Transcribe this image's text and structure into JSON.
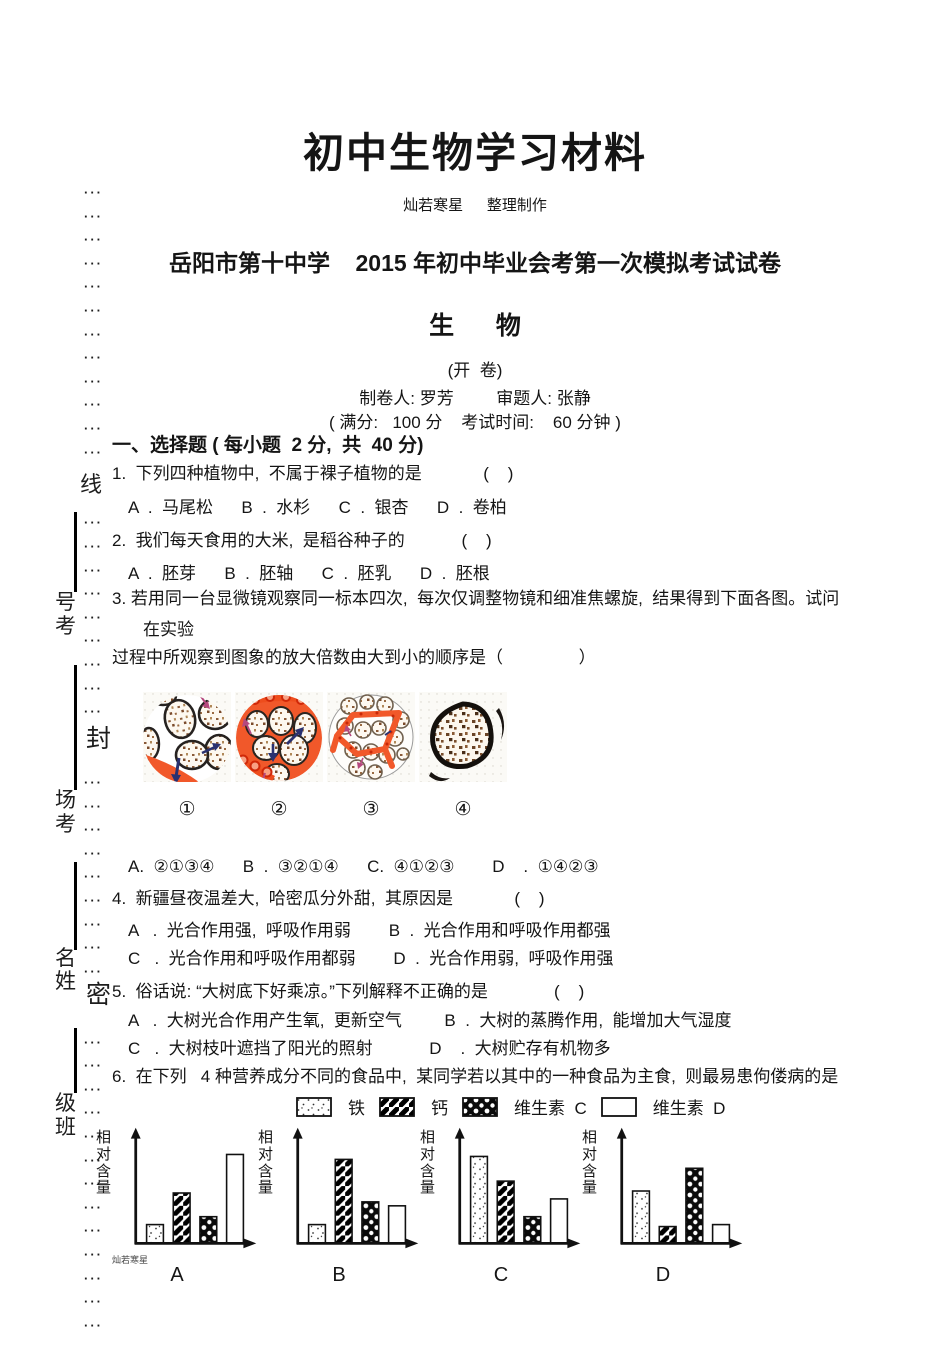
{
  "header": {
    "material_title": "初中生物学习材料",
    "credit": "灿若寒星     整理制作",
    "exam_title": "岳阳市第十中学    2015 年初中毕业会考第一次模拟考试试卷",
    "subject": "生      物",
    "open_book": "(开  卷)",
    "staff": "制卷人: 罗芳         审题人: 张静",
    "score_info": "( 满分:   100 分    考试时间:    60 分钟 )"
  },
  "section": {
    "title": "一、选择题 ( 每小题  2 分,  共  40 分)"
  },
  "q1": {
    "stem": "1.  下列四种植物中,  不属于裸子植物的是             (    )",
    "options": "A  .  马尾松      B  .  水杉      C  .  银杏      D  .  卷柏"
  },
  "q2": {
    "stem": "2.  我们每天食用的大米,  是稻谷种子的            (    )",
    "options": "A  .  胚芽      B  .  胚轴      C  .  胚乳      D  .  胚根"
  },
  "q3": {
    "stem_line1": "3. 若用同一台显微镜观察同一标本四次,  每次仅调整物镜和细准焦螺旋,  结果得到下面各图。试问",
    "stem_line2": "在实验",
    "stem_line3": "过程中所观察到图象的放大倍数由大到小的顺序是（                ）",
    "figure_labels": [
      "①",
      "②",
      "③",
      "④"
    ],
    "options": "A.  ②①③④      B  .  ③②①④      C.  ④①②③        D    .  ①④②③"
  },
  "q4": {
    "stem": "4.  新疆昼夜温差大,  哈密瓜分外甜,  其原因是             (    )",
    "options_ab": "A   .  光合作用强,  呼吸作用弱        B  .  光合作用和呼吸作用都强",
    "options_cd": "C   .  光合作用和呼吸作用都弱        D  .  光合作用弱,  呼吸作用强"
  },
  "q5": {
    "stem": "5.  俗话说: “大树底下好乘凉。”下列解释不正确的是              (    )",
    "options_ab": "A   .  大树光合作用产生氧,  更新空气         B  .  大树的蒸腾作用,  能增加大气湿度",
    "options_cd": "C   .  大树枝叶遮挡了阳光的照射            D    .  大树贮存有机物多"
  },
  "q6": {
    "stem": "6.  在下列   4 种营养成分不同的食品中,  某同学若以其中的一种食品为主食,  则最易患佝偻病的是"
  },
  "legend": {
    "items": [
      {
        "pattern": "dots",
        "label": "铁"
      },
      {
        "pattern": "stripes",
        "label": "钙"
      },
      {
        "pattern": "check",
        "label": "维生素  C"
      },
      {
        "pattern": "plain",
        "label": "维生素  D"
      }
    ]
  },
  "chart_data": [
    {
      "type": "bar",
      "title": "A",
      "ylabel": "相对含量",
      "categories": [
        "铁",
        "钙",
        "维生素C",
        "维生素D"
      ],
      "values": [
        0.19,
        0.51,
        0.27,
        0.9
      ],
      "ylim": [
        0,
        1
      ],
      "grid": false,
      "note": "no numeric ticks shown; values are relative bar heights"
    },
    {
      "type": "bar",
      "title": "B",
      "ylabel": "相对含量",
      "categories": [
        "铁",
        "钙",
        "维生素C",
        "维生素D"
      ],
      "values": [
        0.19,
        0.85,
        0.42,
        0.38
      ],
      "ylim": [
        0,
        1
      ],
      "grid": false,
      "note": "no numeric ticks shown; values are relative bar heights"
    },
    {
      "type": "bar",
      "title": "C",
      "ylabel": "相对含量",
      "categories": [
        "铁",
        "钙",
        "维生素C",
        "维生素D"
      ],
      "values": [
        0.88,
        0.63,
        0.27,
        0.45
      ],
      "ylim": [
        0,
        1
      ],
      "grid": false,
      "note": "no numeric ticks shown; values are relative bar heights"
    },
    {
      "type": "bar",
      "title": "D",
      "ylabel": "相对含量",
      "categories": [
        "铁",
        "钙",
        "维生素C",
        "维生素D"
      ],
      "values": [
        0.53,
        0.17,
        0.76,
        0.19
      ],
      "ylim": [
        0,
        1
      ],
      "grid": false,
      "note": "no numeric ticks shown; values are relative bar heights"
    }
  ],
  "margin": {
    "dots_symbol": "···",
    "label_line": "线",
    "label_exam_no": [
      "号",
      "考"
    ],
    "label_seal": "封",
    "label_site": [
      "场",
      "考"
    ],
    "label_name": [
      "名",
      "姓"
    ],
    "label_secret": "密",
    "label_class": [
      "级",
      "班"
    ]
  },
  "footer_credit": "灿若寒星"
}
